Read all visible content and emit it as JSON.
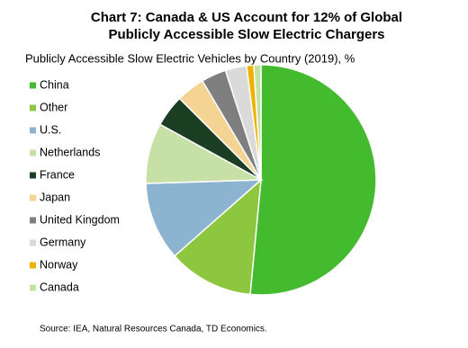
{
  "chart_data": {
    "type": "pie",
    "title": [
      "Chart 7: Canada & US Account for 12% of Global",
      "Publicly  Accessible  Slow  Electric  Chargers"
    ],
    "subtitle": "Publicly Accessible Slow Electric Vehicles by Country (2019), %",
    "source": "Source: IEA,  Natural Resources Canada,  TD Economics.",
    "categories": [
      "China",
      "Other",
      "U.S.",
      "Netherlands",
      "France",
      "Japan",
      "United Kingdom",
      "Germany",
      "Norway",
      "Canada"
    ],
    "values": [
      51.5,
      12,
      11,
      8.5,
      4.5,
      4,
      3.5,
      3,
      1,
      1
    ],
    "colors": [
      "#44bb2f",
      "#8dc63f",
      "#8cb3cf",
      "#c6e0a6",
      "#1c3f24",
      "#f4d393",
      "#7f7f7f",
      "#dadada",
      "#f0b000",
      "#c3e3a3"
    ],
    "legend": "left"
  }
}
